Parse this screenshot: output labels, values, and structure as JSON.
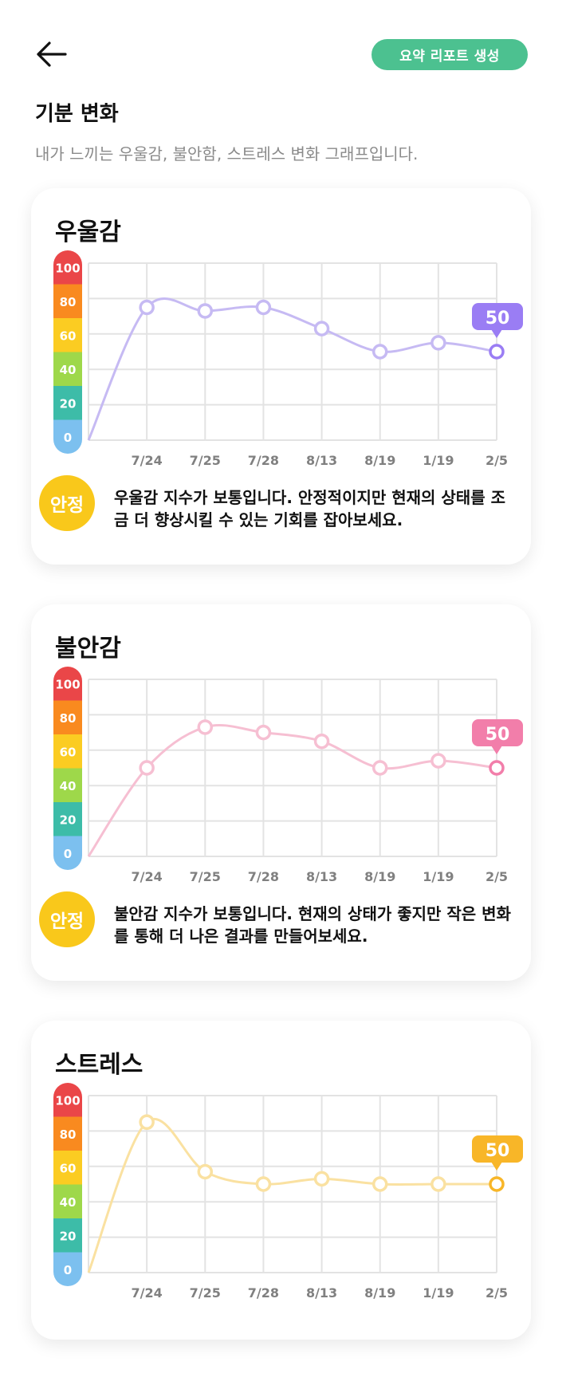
{
  "header": {
    "back_icon": "arrow-left-icon",
    "report_button_label": "요약 리포트 생성",
    "report_button_color": "#4cc190"
  },
  "page": {
    "title": "기분 변화",
    "subtitle": "내가 느끼는 우울감, 불안함, 스트레스 변화 그래프입니다."
  },
  "scale": {
    "labels": [
      "100",
      "80",
      "60",
      "40",
      "20",
      "0"
    ],
    "colors": [
      "#ea4648",
      "#f98a1f",
      "#fbcc22",
      "#9ed84a",
      "#3dbca8",
      "#7cc0ef"
    ]
  },
  "cards": [
    {
      "title": "우울감",
      "badge": "안정",
      "description": "우울감 지수가 보통입니다. 안정적이지만 현재의 상태를 조금 더 향상시킬 수 있는 기회를 잡아보세요.",
      "current_value": "50",
      "line_color": "#c6baf3",
      "accent_color": "#9a7df4"
    },
    {
      "title": "불안감",
      "badge": "안정",
      "description": "불안감 지수가 보통입니다. 현재의 상태가 좋지만 작은 변화를 통해 더 나은 결과를 만들어보세요.",
      "current_value": "50",
      "line_color": "#f6bfd2",
      "accent_color": "#f27eaa"
    },
    {
      "title": "스트레스",
      "badge": "",
      "description": "",
      "current_value": "50",
      "line_color": "#fae1a1",
      "accent_color": "#f8b628"
    }
  ],
  "chart_data": [
    {
      "type": "line",
      "x": [
        "7/24",
        "7/25",
        "7/28",
        "8/13",
        "8/19",
        "1/19",
        "2/5"
      ],
      "values": [
        75,
        73,
        75,
        63,
        50,
        55,
        50
      ],
      "ylim": [
        0,
        100
      ],
      "yticks": [
        0,
        20,
        40,
        60,
        80,
        100
      ],
      "grid": true
    },
    {
      "type": "line",
      "x": [
        "7/24",
        "7/25",
        "7/28",
        "8/13",
        "8/19",
        "1/19",
        "2/5"
      ],
      "values": [
        50,
        73,
        70,
        65,
        50,
        54,
        50
      ],
      "ylim": [
        0,
        100
      ],
      "yticks": [
        0,
        20,
        40,
        60,
        80,
        100
      ],
      "grid": true
    },
    {
      "type": "line",
      "x": [
        "7/24",
        "7/25",
        "7/28",
        "8/13",
        "8/19",
        "1/19",
        "2/5"
      ],
      "values": [
        85,
        57,
        50,
        53,
        50,
        50,
        50
      ],
      "ylim": [
        0,
        100
      ],
      "yticks": [
        0,
        20,
        40,
        60,
        80,
        100
      ],
      "grid": true
    }
  ]
}
